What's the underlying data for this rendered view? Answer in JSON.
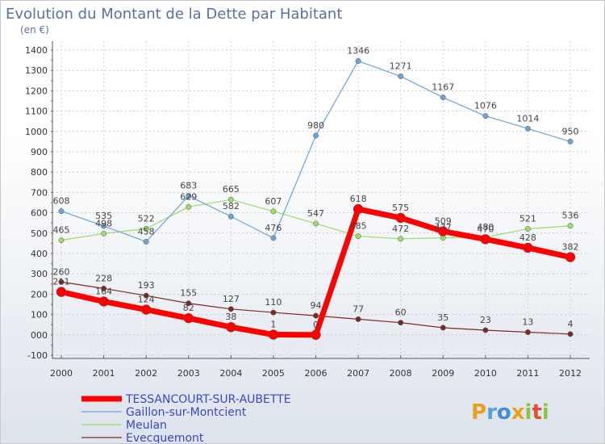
{
  "chart_data": {
    "type": "line",
    "title": "Evolution du Montant de la Dette par Habitant",
    "unit_label": "(en €)",
    "x": [
      "2000",
      "2001",
      "2002",
      "2003",
      "2004",
      "2005",
      "2006",
      "2007",
      "2008",
      "2009",
      "2010",
      "2011",
      "2012"
    ],
    "ylim": [
      -100,
      1400
    ],
    "yticks": [
      -100,
      0,
      100,
      200,
      300,
      400,
      500,
      600,
      700,
      800,
      900,
      1000,
      1100,
      1200,
      1300,
      1400
    ],
    "ytick_labels": [
      "-100",
      "000",
      "100",
      "200",
      "300",
      "400",
      "500",
      "600",
      "700",
      "800",
      "900",
      "1000",
      "1100",
      "1200",
      "1300",
      "1400"
    ],
    "grid": true,
    "legend_position": "bottom-left",
    "series": [
      {
        "name": "Evecquemont",
        "color": "#7b2a24",
        "width": 1.2,
        "marker": 3.2,
        "values": [
          260,
          228,
          193,
          155,
          127,
          110,
          94,
          77,
          60,
          35,
          23,
          13,
          4
        ]
      },
      {
        "name": "Meulan",
        "color": "#99dd6a",
        "width": 1.2,
        "marker": 3.2,
        "values": [
          465,
          498,
          522,
          629,
          665,
          607,
          547,
          485,
          472,
          477,
          480,
          521,
          536
        ]
      },
      {
        "name": "Gaillon-sur-Montcient",
        "color": "#6ba4d8",
        "width": 1.2,
        "marker": 3.2,
        "values": [
          608,
          535,
          458,
          683,
          582,
          476,
          980,
          1346,
          1271,
          1167,
          1076,
          1014,
          950
        ]
      },
      {
        "name": "TESSANCOURT-SUR-AUBETTE",
        "color": "#ff0000",
        "width": 7,
        "marker": 6,
        "values": [
          211,
          164,
          124,
          82,
          38,
          1,
          0,
          618,
          575,
          509,
          470,
          428,
          382
        ]
      }
    ],
    "legend_order": [
      "TESSANCOURT-SUR-AUBETTE",
      "Gaillon-sur-Montcient",
      "Meulan",
      "Evecquemont"
    ]
  },
  "brand": {
    "letters": [
      "P",
      "r",
      "o",
      "x",
      "i",
      "t",
      "i"
    ],
    "colors": [
      "#e8a020",
      "#5aa0d8",
      "#3a8fd8",
      "#e8a020",
      "#8cc63f",
      "#e84b3a",
      "#8cc63f"
    ]
  }
}
